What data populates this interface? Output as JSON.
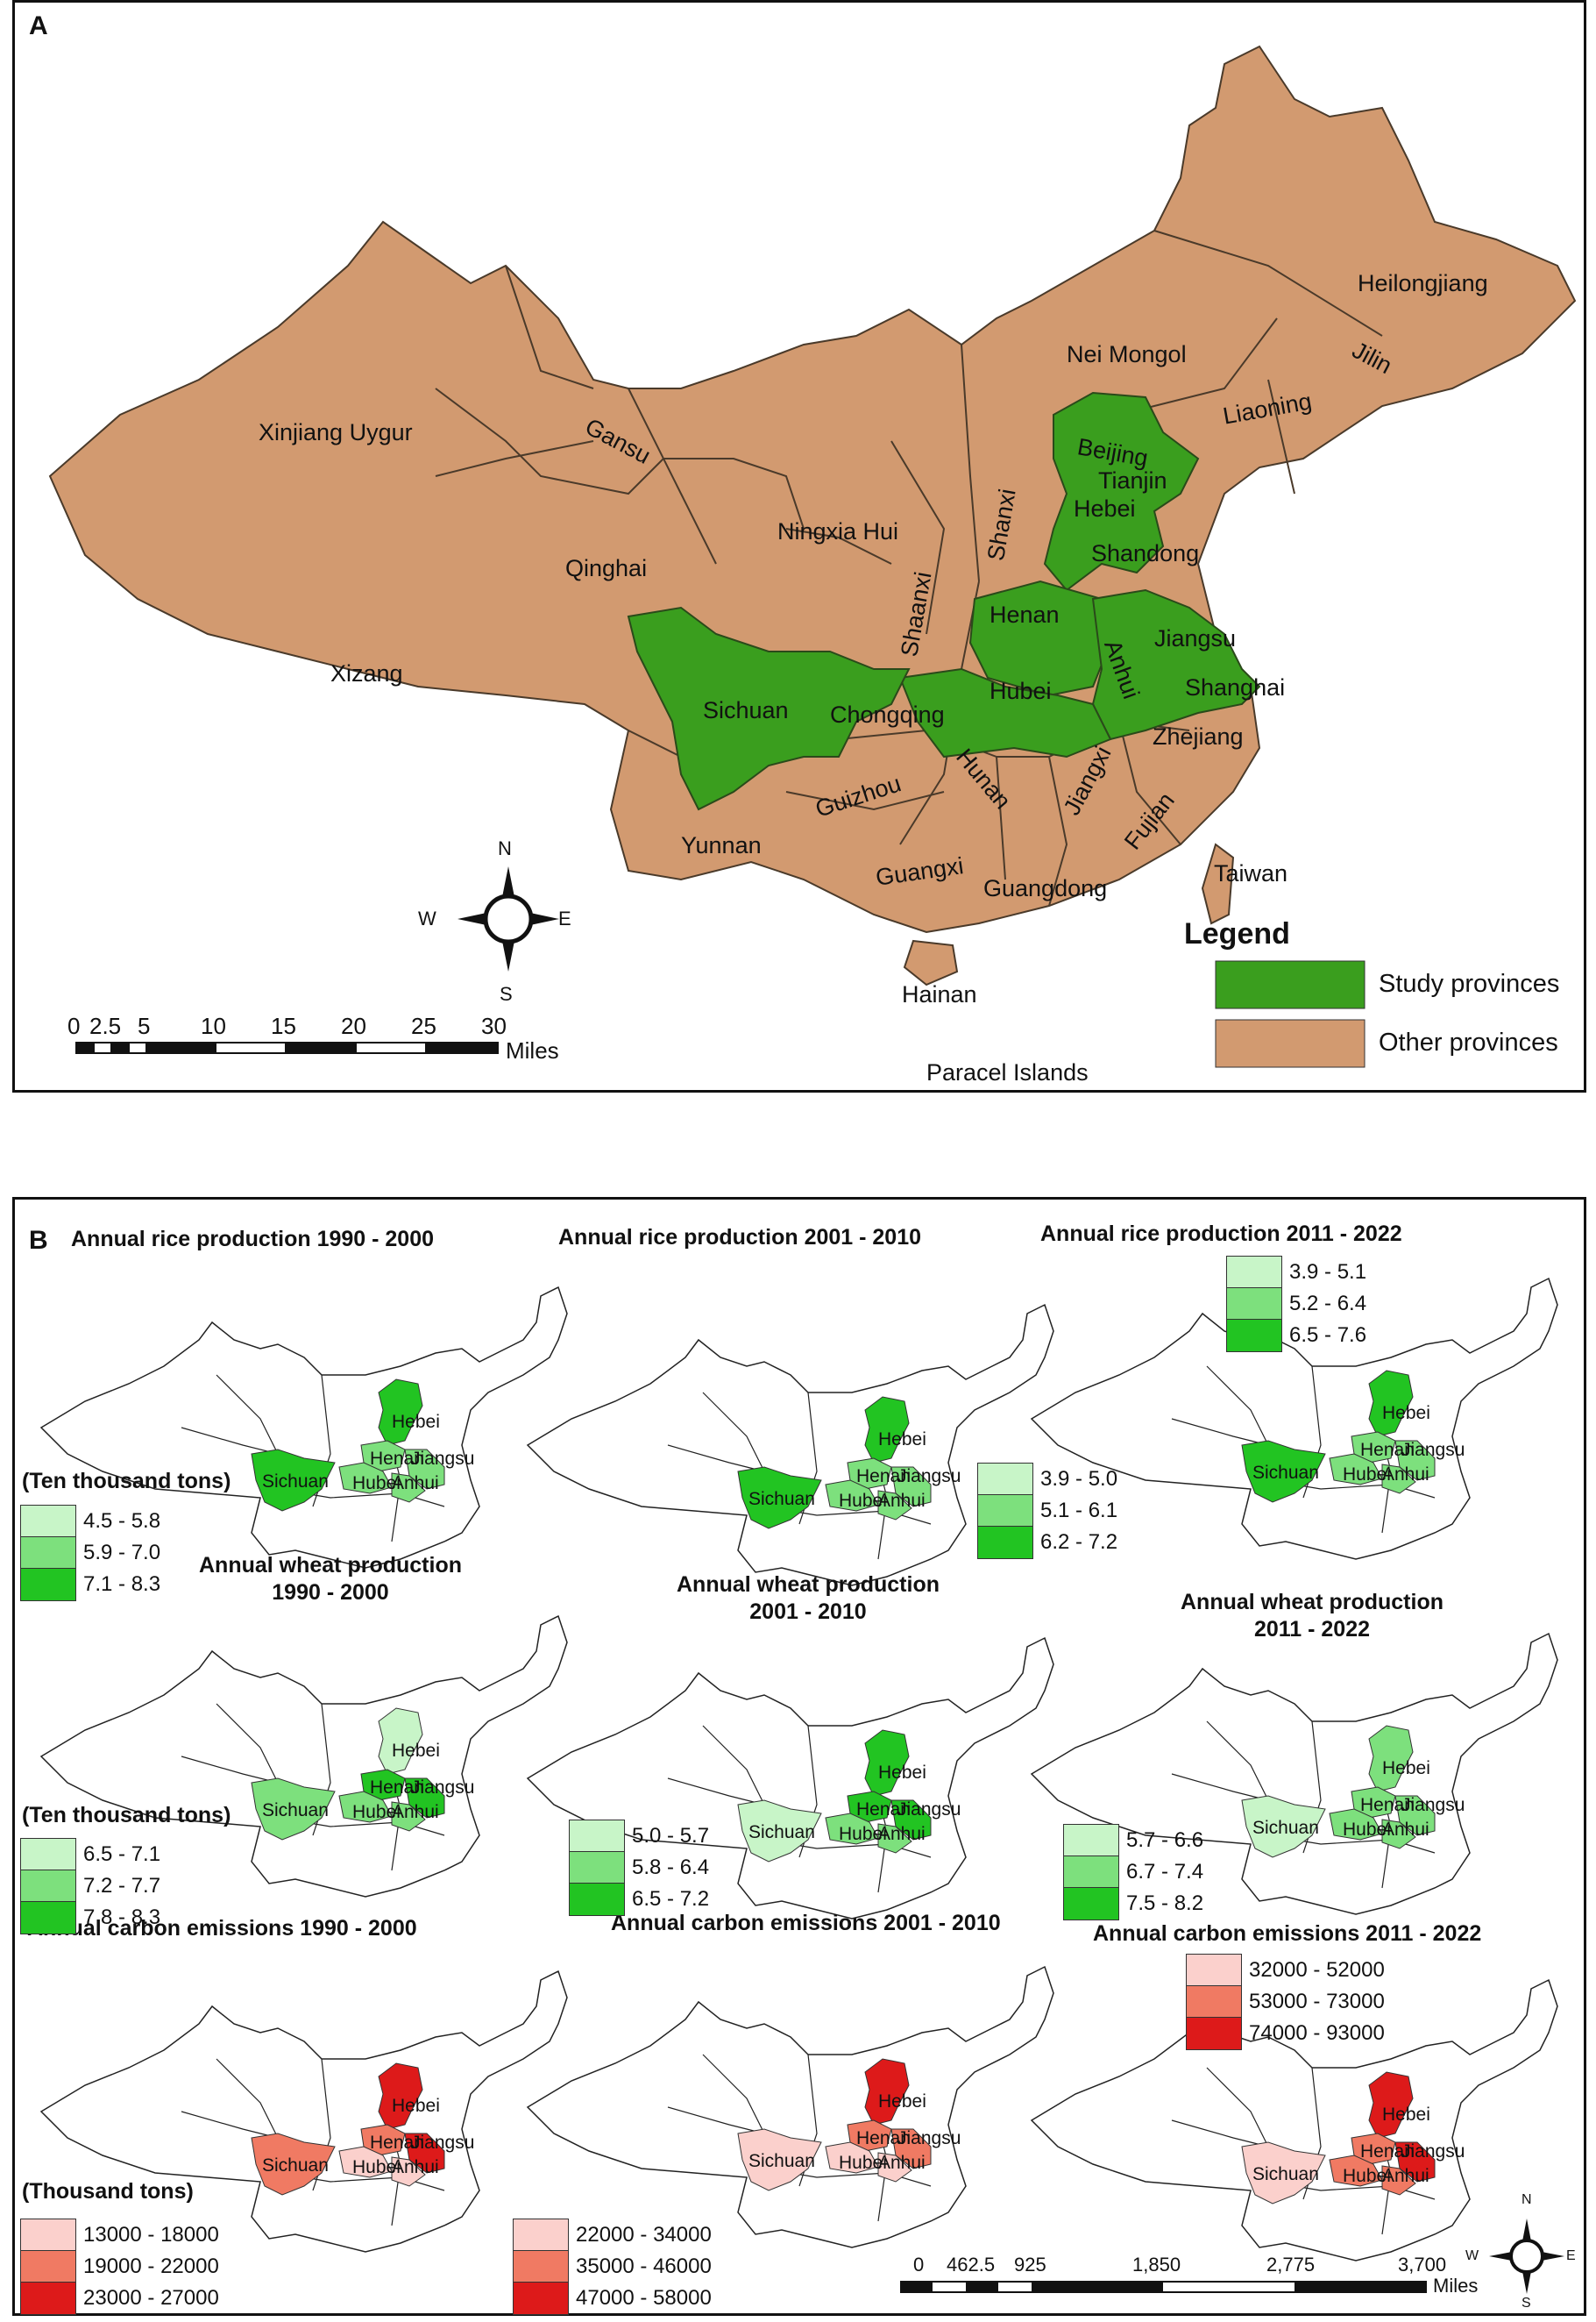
{
  "panel_a": {
    "label": "A",
    "provinces": [
      {
        "name": "Heilongjiang",
        "study": false
      },
      {
        "name": "Nei Mongol",
        "study": false
      },
      {
        "name": "Jilin",
        "study": false
      },
      {
        "name": "Liaoning",
        "study": false
      },
      {
        "name": "Xinjiang Uygur",
        "study": false
      },
      {
        "name": "Gansu",
        "study": false
      },
      {
        "name": "Beijing",
        "study": true
      },
      {
        "name": "Tianjin",
        "study": true
      },
      {
        "name": "Hebei",
        "study": true
      },
      {
        "name": "Ningxia Hui",
        "study": false
      },
      {
        "name": "Shanxi",
        "study": false
      },
      {
        "name": "Qinghai",
        "study": false
      },
      {
        "name": "Shandong",
        "study": false
      },
      {
        "name": "Shaanxi",
        "study": false
      },
      {
        "name": "Henan",
        "study": true
      },
      {
        "name": "Jiangsu",
        "study": true
      },
      {
        "name": "Anhui",
        "study": true
      },
      {
        "name": "Xizang",
        "study": false
      },
      {
        "name": "Hubei",
        "study": true
      },
      {
        "name": "Shanghai",
        "study": false
      },
      {
        "name": "Sichuan",
        "study": true
      },
      {
        "name": "Chongqing",
        "study": false
      },
      {
        "name": "Zhejiang",
        "study": false
      },
      {
        "name": "Guizhou",
        "study": false
      },
      {
        "name": "Hunan",
        "study": false
      },
      {
        "name": "Jiangxi",
        "study": false
      },
      {
        "name": "Fujian",
        "study": false
      },
      {
        "name": "Yunnan",
        "study": false
      },
      {
        "name": "Guangxi",
        "study": false
      },
      {
        "name": "Guangdong",
        "study": false
      },
      {
        "name": "Taiwan",
        "study": false
      },
      {
        "name": "Hainan",
        "study": false
      },
      {
        "name": "Paracel Islands",
        "study": false
      }
    ],
    "compass": {
      "n": "N",
      "s": "S",
      "e": "E",
      "w": "W"
    },
    "scale": {
      "ticks": [
        "0",
        "2.5",
        "5",
        "10",
        "15",
        "20",
        "25",
        "30"
      ],
      "unit": "Miles"
    },
    "legend": {
      "title": "Legend",
      "items": [
        {
          "label": "Study provinces",
          "color": "#3a9e1e"
        },
        {
          "label": "Other provinces",
          "color": "#d29a70"
        }
      ]
    },
    "colors": {
      "study": "#3a9e1e",
      "other": "#d29a70",
      "border": "#4a3a2a"
    }
  },
  "panel_b": {
    "label": "B",
    "maps": [
      {
        "title": "Annual rice production 1990 - 2000",
        "unit": "(Ten thousand tons)",
        "classes": [
          {
            "range": "4.5 - 5.8",
            "color": "#c8f5c8"
          },
          {
            "range": "5.9 - 7.0",
            "color": "#7de07d"
          },
          {
            "range": "7.1 - 8.3",
            "color": "#22c422"
          }
        ]
      },
      {
        "title": "Annual rice production 2001 - 2010",
        "unit": "",
        "classes": [
          {
            "range": "3.9 - 5.0",
            "color": "#c8f5c8"
          },
          {
            "range": "5.1 - 6.1",
            "color": "#7de07d"
          },
          {
            "range": "6.2 - 7.2",
            "color": "#22c422"
          }
        ]
      },
      {
        "title": "Annual rice production 2011 - 2022",
        "unit": "",
        "classes": [
          {
            "range": "3.9 - 5.1",
            "color": "#c8f5c8"
          },
          {
            "range": "5.2 - 6.4",
            "color": "#7de07d"
          },
          {
            "range": "6.5 - 7.6",
            "color": "#22c422"
          }
        ]
      },
      {
        "title": "Annual wheat production 1990 - 2000",
        "unit": "(Ten thousand tons)",
        "classes": [
          {
            "range": "6.5 - 7.1",
            "color": "#c8f5c8"
          },
          {
            "range": "7.2 - 7.7",
            "color": "#7de07d"
          },
          {
            "range": "7.8 - 8.3",
            "color": "#22c422"
          }
        ]
      },
      {
        "title": "Annual wheat production 2001 - 2010",
        "unit": "",
        "classes": [
          {
            "range": "5.0 - 5.7",
            "color": "#c8f5c8"
          },
          {
            "range": "5.8 - 6.4",
            "color": "#7de07d"
          },
          {
            "range": "6.5 - 7.2",
            "color": "#22c422"
          }
        ]
      },
      {
        "title": "Annual wheat production 2011 - 2022",
        "unit": "",
        "classes": [
          {
            "range": "5.7 - 6.6",
            "color": "#c8f5c8"
          },
          {
            "range": "6.7 - 7.4",
            "color": "#7de07d"
          },
          {
            "range": "7.5 - 8.2",
            "color": "#22c422"
          }
        ]
      },
      {
        "title": "Annual carbon emissions 1990 - 2000",
        "unit": "(Thousand tons)",
        "classes": [
          {
            "range": "13000 - 18000",
            "color": "#fbd0cc"
          },
          {
            "range": "19000 - 22000",
            "color": "#f07a63"
          },
          {
            "range": "23000 - 27000",
            "color": "#dd1a1a"
          }
        ]
      },
      {
        "title": "Annual carbon emissions 2001 - 2010",
        "unit": "",
        "classes": [
          {
            "range": "22000 - 34000",
            "color": "#fbd0cc"
          },
          {
            "range": "35000 - 46000",
            "color": "#f07a63"
          },
          {
            "range": "47000 - 58000",
            "color": "#dd1a1a"
          }
        ]
      },
      {
        "title": "Annual carbon emissions 2011 - 2022",
        "unit": "",
        "classes": [
          {
            "range": "32000 - 52000",
            "color": "#fbd0cc"
          },
          {
            "range": "53000 - 73000",
            "color": "#f07a63"
          },
          {
            "range": "74000 - 93000",
            "color": "#dd1a1a"
          }
        ]
      }
    ],
    "map_labels": {
      "hebei": "Hebei",
      "henan": "Henan",
      "jiangsu": "Jiangsu",
      "hubei": "Hubei",
      "anhui": "Anhui",
      "sichuan": "Sichuan"
    },
    "scale": {
      "ticks": [
        "0",
        "462.5",
        "925",
        "1,850",
        "2,775",
        "3,700"
      ],
      "unit": "Miles"
    },
    "compass": {
      "n": "N",
      "s": "S",
      "e": "E",
      "w": "W"
    }
  }
}
